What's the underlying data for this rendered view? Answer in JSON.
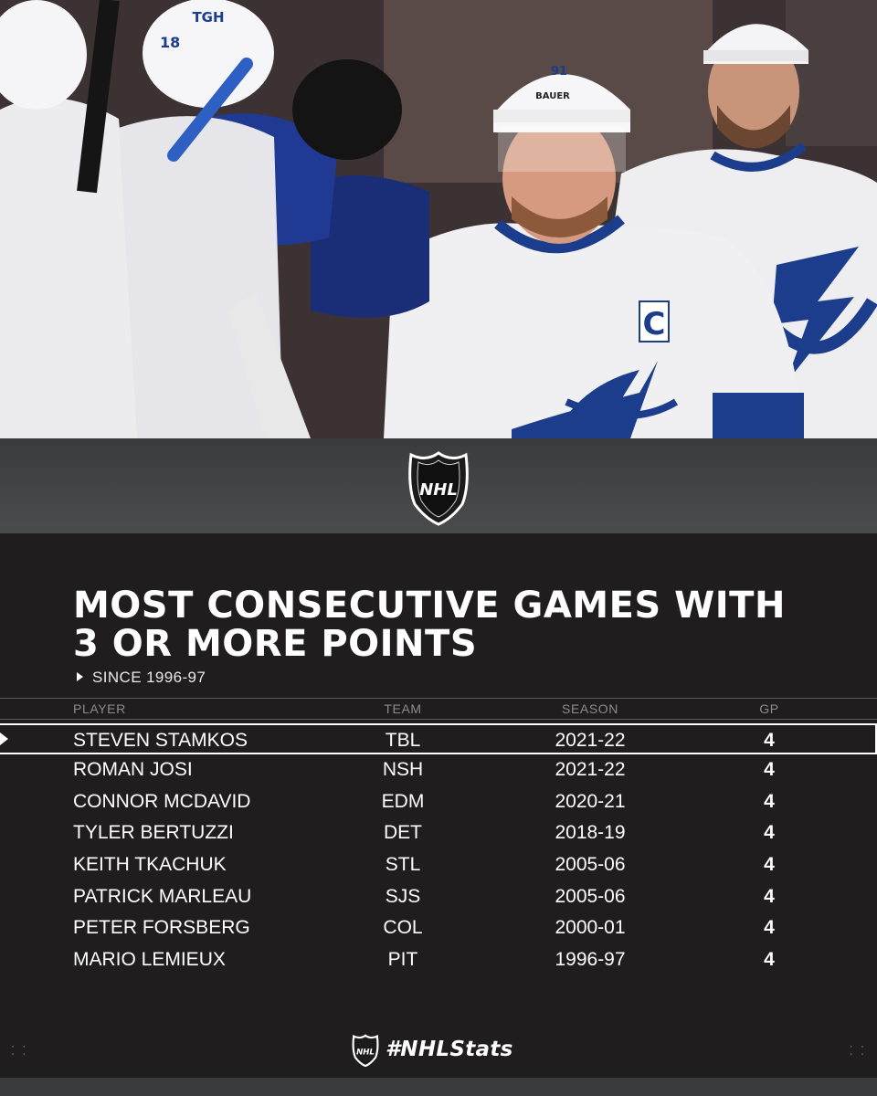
{
  "photo": {
    "jersey_number": "91",
    "captain_letter": "C",
    "helmet_brand": "BAUER",
    "helmet_sponsor": "TGH",
    "teammate_number": "18"
  },
  "logo": {
    "text": "NHL"
  },
  "title_lines": [
    "MOST CONSECUTIVE GAMES WITH",
    "3 OR MORE POINTS"
  ],
  "subtitle": "SINCE 1996-97",
  "table": {
    "headers": {
      "player": "PLAYER",
      "team": "TEAM",
      "season": "SEASON",
      "gp": "GP"
    },
    "rows": [
      {
        "player": "STEVEN STAMKOS",
        "team": "TBL",
        "season": "2021-22",
        "gp": "4"
      },
      {
        "player": "ROMAN JOSI",
        "team": "NSH",
        "season": "2021-22",
        "gp": "4"
      },
      {
        "player": "CONNOR MCDAVID",
        "team": "EDM",
        "season": "2020-21",
        "gp": "4"
      },
      {
        "player": "TYLER BERTUZZI",
        "team": "DET",
        "season": "2018-19",
        "gp": "4"
      },
      {
        "player": "KEITH TKACHUK",
        "team": "STL",
        "season": "2005-06",
        "gp": "4"
      },
      {
        "player": "PATRICK MARLEAU",
        "team": "SJS",
        "season": "2005-06",
        "gp": "4"
      },
      {
        "player": "PETER FORSBERG",
        "team": "COL",
        "season": "2000-01",
        "gp": "4"
      },
      {
        "player": "MARIO LEMIEUX",
        "team": "PIT",
        "season": "1996-97",
        "gp": "4"
      }
    ]
  },
  "footer": {
    "hashtag": "#NHLStats"
  },
  "colors": {
    "background": "#1f1d1e",
    "band": "#454648",
    "jersey_blue": "#1a3a8a",
    "jersey_white": "#f2f2f4"
  }
}
